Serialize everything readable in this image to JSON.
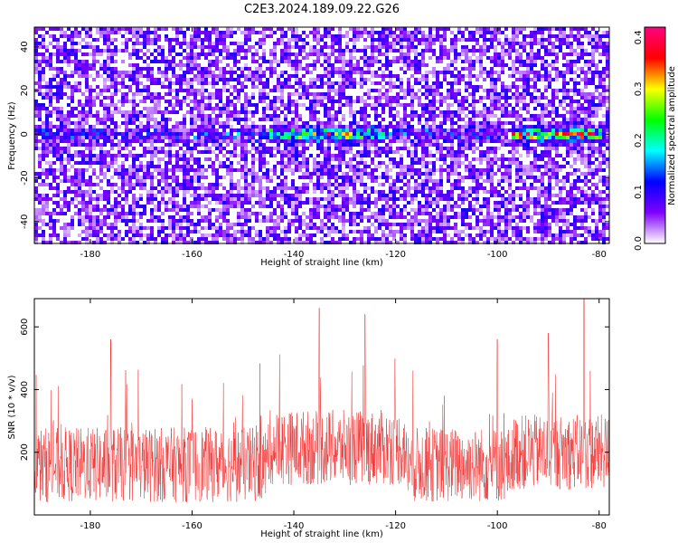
{
  "title": "C2E3.2024.189.09.22.G26",
  "chart_data": [
    {
      "type": "heatmap",
      "xlabel": "Height of straight line (km)",
      "ylabel": "Frequency (Hz)",
      "xlim": [
        -191,
        -78
      ],
      "ylim": [
        -50,
        49
      ],
      "xticks": [
        -180,
        -160,
        -140,
        -120,
        -100,
        -80
      ],
      "yticks": [
        -40,
        -20,
        0,
        20,
        40
      ],
      "colorbar": {
        "label": "Normalized spectral amplitude",
        "range": [
          0.0,
          0.42
        ],
        "ticks": [
          0.0,
          0.1,
          0.2,
          0.3,
          0.4
        ],
        "colors": [
          "#ffffff",
          "#8000ff",
          "#0000ff",
          "#00ffff",
          "#00ff00",
          "#ffff00",
          "#ff0000",
          "#ff0080"
        ]
      },
      "features": [
        {
          "x_range": [
            -145,
            -122
          ],
          "y_center": 0,
          "peak_value": 0.3
        },
        {
          "x_range": [
            -97,
            -79
          ],
          "y_center": 0,
          "peak_value": 0.4
        }
      ],
      "grid": false
    },
    {
      "type": "line",
      "xlabel": "Height of straight line (km)",
      "ylabel": "SNR (10 * v/v)",
      "xlim": [
        -191,
        -78
      ],
      "ylim": [
        0,
        690
      ],
      "xticks": [
        -180,
        -160,
        -140,
        -120,
        -100,
        -80
      ],
      "yticks": [
        200,
        400,
        600
      ],
      "color": "#f03232",
      "baseline_mean": 160,
      "peaks": [
        {
          "x": -135,
          "y": 660
        },
        {
          "x": -126,
          "y": 640
        },
        {
          "x": -83,
          "y": 690
        },
        {
          "x": -176,
          "y": 560
        },
        {
          "x": -100,
          "y": 560
        },
        {
          "x": -90,
          "y": 580
        }
      ],
      "grid": false
    }
  ]
}
